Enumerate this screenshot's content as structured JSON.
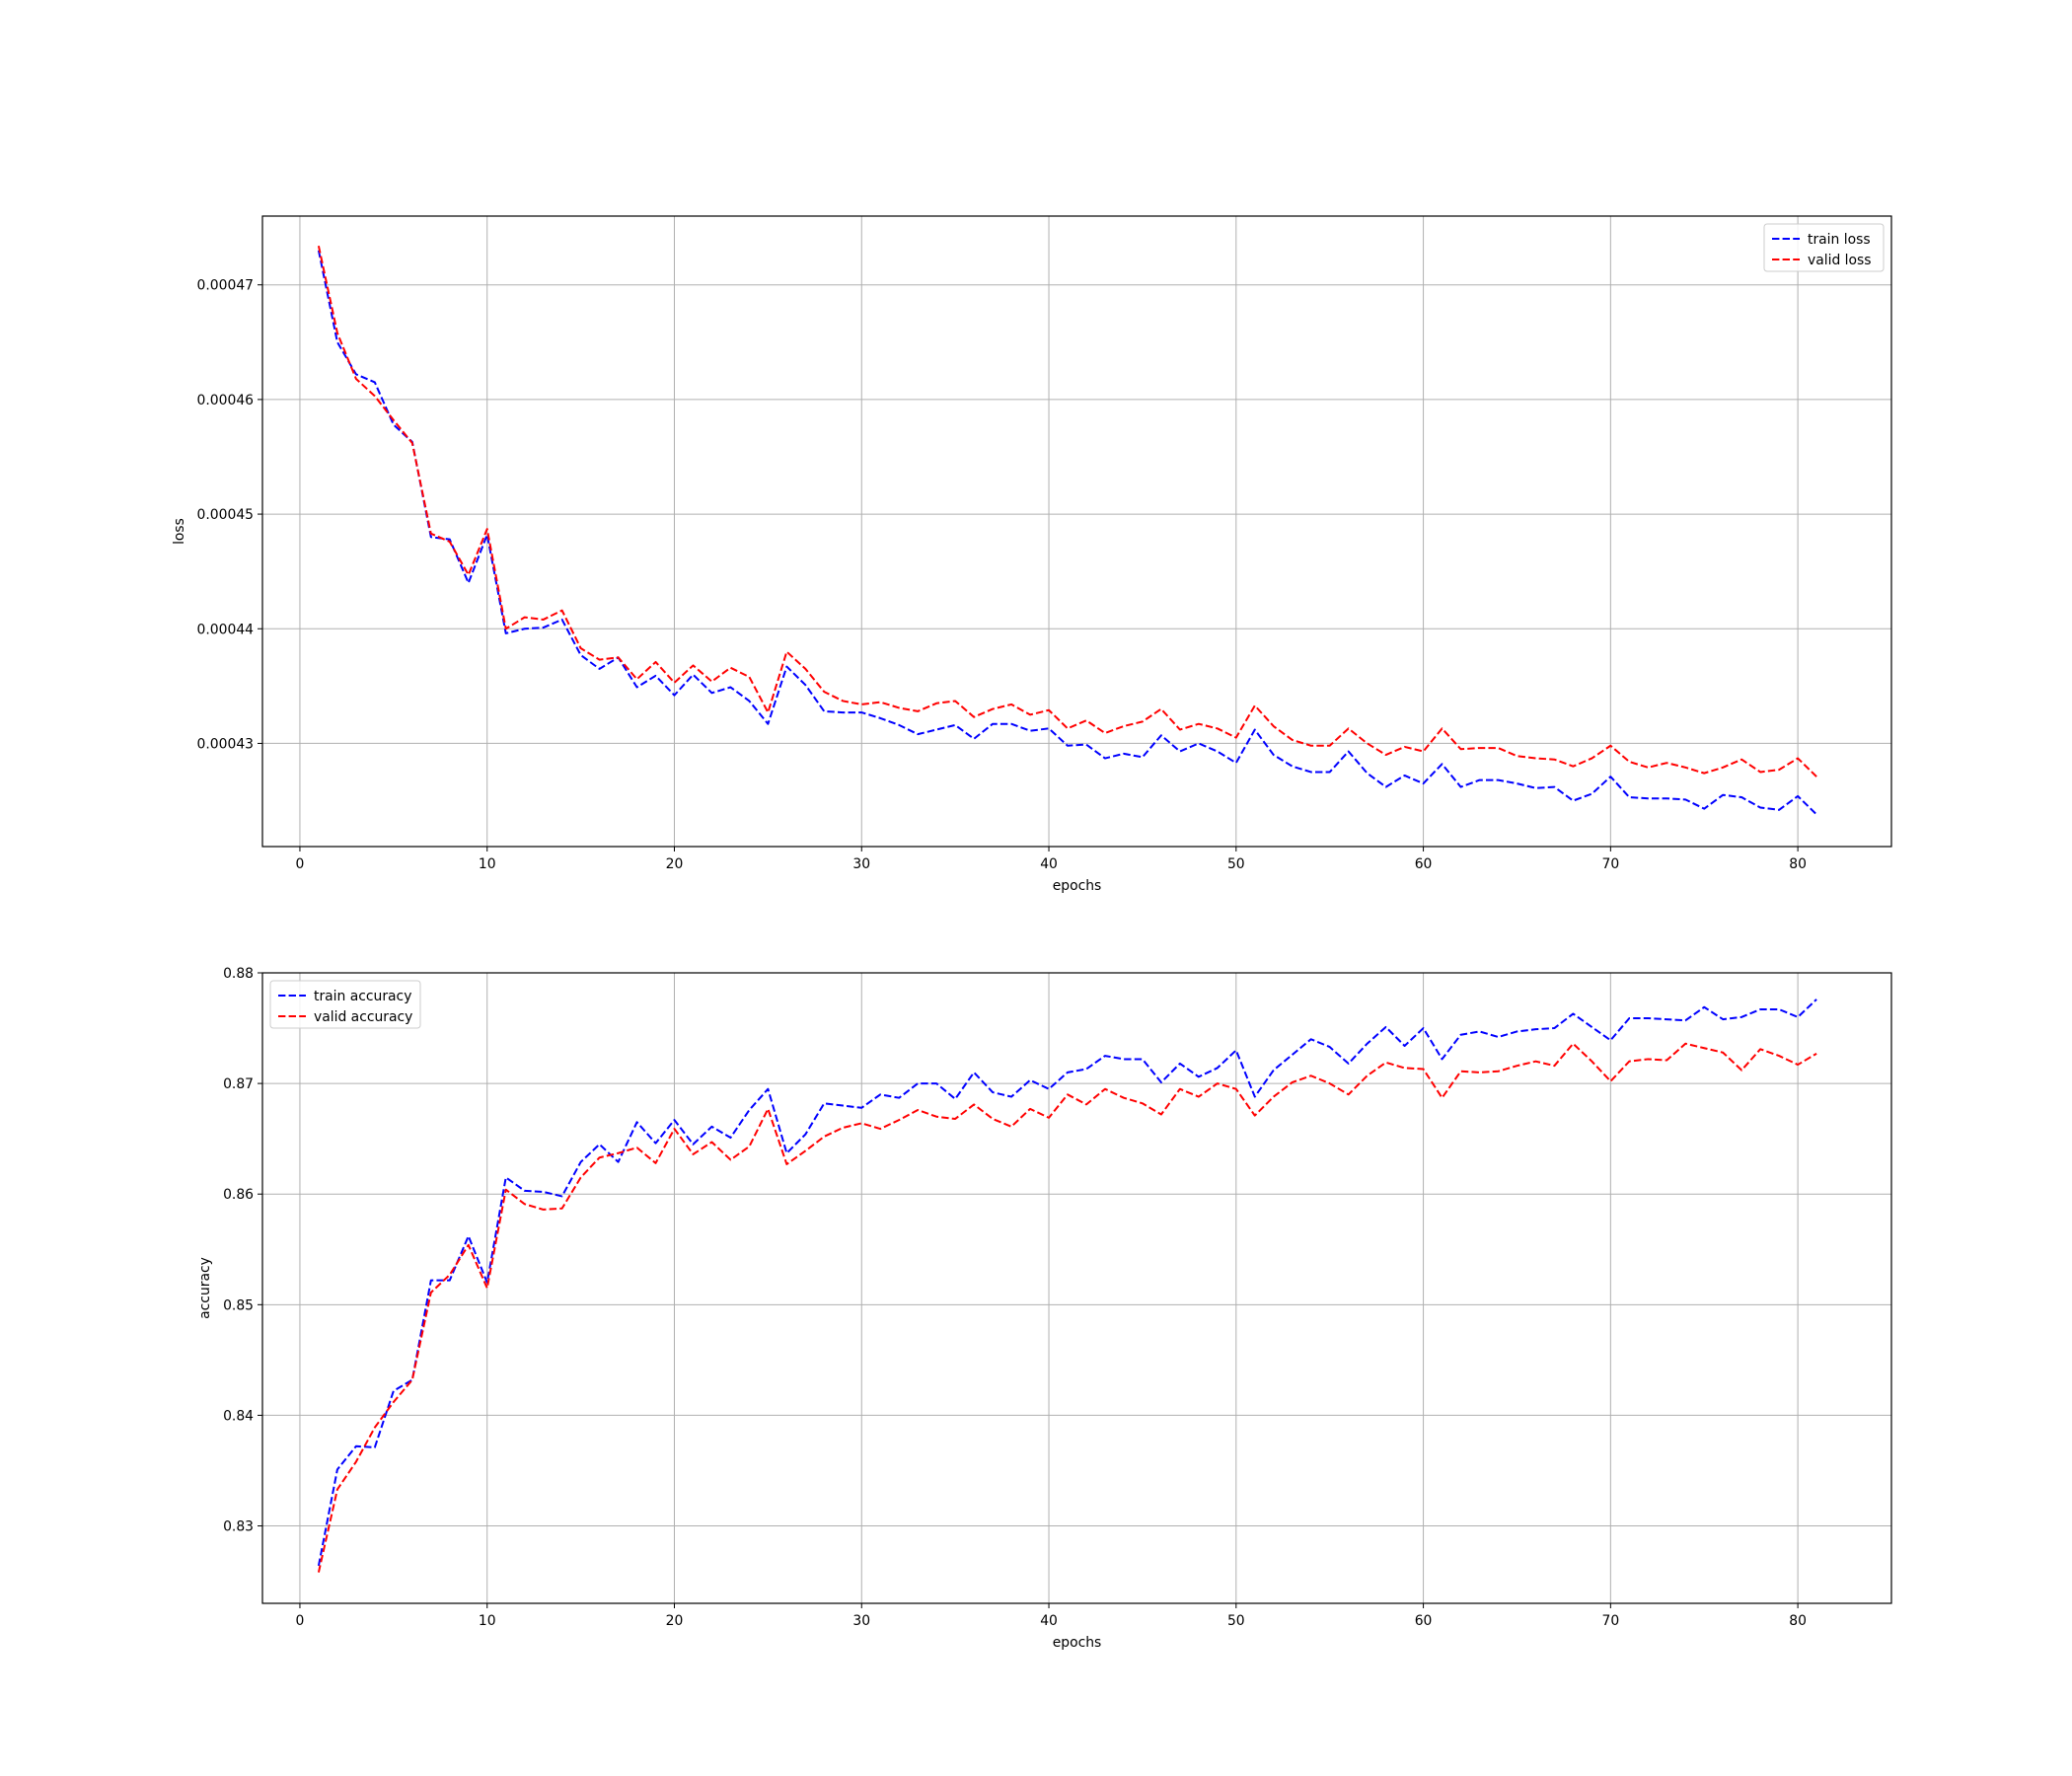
{
  "chart_data": [
    {
      "type": "line",
      "xlabel": "epochs",
      "ylabel": "loss",
      "xlim": [
        -2.0,
        85.0
      ],
      "ylim": [
        0.000421,
        0.000476
      ],
      "xticks": [
        0,
        10,
        20,
        30,
        40,
        50,
        60,
        70,
        80
      ],
      "yticks": [
        0.00043,
        0.00044,
        0.00045,
        0.00046,
        0.00047
      ],
      "ytick_labels": [
        "0.00043",
        "0.00044",
        "0.00045",
        "0.00046",
        "0.00047"
      ],
      "grid": true,
      "legend_position": "top-right",
      "x": [
        1,
        2,
        3,
        4,
        5,
        6,
        7,
        8,
        9,
        10,
        11,
        12,
        13,
        14,
        15,
        16,
        17,
        18,
        19,
        20,
        21,
        22,
        23,
        24,
        25,
        26,
        27,
        28,
        29,
        30,
        31,
        32,
        33,
        34,
        35,
        36,
        37,
        38,
        39,
        40,
        41,
        42,
        43,
        44,
        45,
        46,
        47,
        48,
        49,
        50,
        51,
        52,
        53,
        54,
        55,
        56,
        57,
        58,
        59,
        60,
        61,
        62,
        63,
        64,
        65,
        66,
        67,
        68,
        69,
        70,
        71,
        72,
        73,
        74,
        75,
        76,
        77,
        78,
        79,
        80,
        81
      ],
      "series": [
        {
          "name": "train loss",
          "color": "#0000ff",
          "values": [
            0.000473,
            0.000465,
            0.0004622,
            0.0004615,
            0.0004578,
            0.0004563,
            0.000448,
            0.0004478,
            0.000444,
            0.0004482,
            0.0004396,
            0.00044,
            0.0004401,
            0.0004408,
            0.0004377,
            0.0004365,
            0.0004375,
            0.0004349,
            0.0004359,
            0.0004342,
            0.000436,
            0.0004344,
            0.0004349,
            0.0004337,
            0.0004317,
            0.0004367,
            0.0004351,
            0.0004328,
            0.0004327,
            0.0004327,
            0.0004322,
            0.0004316,
            0.0004308,
            0.0004312,
            0.0004316,
            0.0004304,
            0.0004317,
            0.0004317,
            0.0004311,
            0.0004313,
            0.0004298,
            0.0004299,
            0.0004287,
            0.0004291,
            0.0004288,
            0.0004307,
            0.0004293,
            0.00043,
            0.0004293,
            0.0004283,
            0.0004312,
            0.000429,
            0.000428,
            0.0004275,
            0.0004275,
            0.0004293,
            0.0004274,
            0.0004262,
            0.0004272,
            0.0004265,
            0.0004282,
            0.0004262,
            0.0004268,
            0.0004268,
            0.0004265,
            0.0004261,
            0.0004262,
            0.000425,
            0.0004256,
            0.0004271,
            0.0004253,
            0.0004252,
            0.0004252,
            0.0004251,
            0.0004243,
            0.0004255,
            0.0004253,
            0.0004244,
            0.0004242,
            0.0004254,
            0.0004238
          ]
        },
        {
          "name": "valid loss",
          "color": "#ff0000",
          "values": [
            0.0004734,
            0.0004658,
            0.0004618,
            0.0004603,
            0.0004582,
            0.0004562,
            0.0004483,
            0.0004476,
            0.0004447,
            0.0004487,
            0.00044,
            0.000441,
            0.0004408,
            0.0004416,
            0.0004383,
            0.0004373,
            0.0004375,
            0.0004356,
            0.0004371,
            0.0004353,
            0.0004368,
            0.0004354,
            0.0004366,
            0.0004358,
            0.0004327,
            0.000438,
            0.0004365,
            0.0004345,
            0.0004337,
            0.0004334,
            0.0004336,
            0.0004331,
            0.0004328,
            0.0004335,
            0.0004337,
            0.0004323,
            0.000433,
            0.0004334,
            0.0004325,
            0.0004329,
            0.0004313,
            0.000432,
            0.0004309,
            0.0004315,
            0.0004319,
            0.000433,
            0.0004312,
            0.0004317,
            0.0004313,
            0.0004305,
            0.0004333,
            0.0004315,
            0.0004303,
            0.0004298,
            0.0004298,
            0.0004313,
            0.00043,
            0.000429,
            0.0004297,
            0.0004293,
            0.0004313,
            0.0004295,
            0.0004296,
            0.0004296,
            0.0004289,
            0.0004287,
            0.0004286,
            0.000428,
            0.0004287,
            0.0004298,
            0.0004284,
            0.0004279,
            0.0004283,
            0.0004279,
            0.0004274,
            0.0004279,
            0.0004286,
            0.0004275,
            0.0004277,
            0.0004287,
            0.0004271
          ]
        }
      ]
    },
    {
      "type": "line",
      "xlabel": "epochs",
      "ylabel": "accuracy",
      "xlim": [
        -2.0,
        85.0
      ],
      "ylim": [
        0.823,
        0.88
      ],
      "xticks": [
        0,
        10,
        20,
        30,
        40,
        50,
        60,
        70,
        80
      ],
      "yticks": [
        0.83,
        0.84,
        0.85,
        0.86,
        0.87,
        0.88
      ],
      "ytick_labels": [
        "0.83",
        "0.84",
        "0.85",
        "0.86",
        "0.87",
        "0.88"
      ],
      "grid": true,
      "legend_position": "top-left",
      "x": [
        1,
        2,
        3,
        4,
        5,
        6,
        7,
        8,
        9,
        10,
        11,
        12,
        13,
        14,
        15,
        16,
        17,
        18,
        19,
        20,
        21,
        22,
        23,
        24,
        25,
        26,
        27,
        28,
        29,
        30,
        31,
        32,
        33,
        34,
        35,
        36,
        37,
        38,
        39,
        40,
        41,
        42,
        43,
        44,
        45,
        46,
        47,
        48,
        49,
        50,
        51,
        52,
        53,
        54,
        55,
        56,
        57,
        58,
        59,
        60,
        61,
        62,
        63,
        64,
        65,
        66,
        67,
        68,
        69,
        70,
        71,
        72,
        73,
        74,
        75,
        76,
        77,
        78,
        79,
        80,
        81
      ],
      "series": [
        {
          "name": "train accuracy",
          "color": "#0000ff",
          "values": [
            0.8264,
            0.8351,
            0.8372,
            0.8371,
            0.8422,
            0.8432,
            0.8522,
            0.8522,
            0.8562,
            0.852,
            0.8615,
            0.8603,
            0.8602,
            0.8598,
            0.8629,
            0.8645,
            0.8629,
            0.8665,
            0.8646,
            0.8667,
            0.8645,
            0.8661,
            0.8651,
            0.8676,
            0.8695,
            0.8637,
            0.8654,
            0.8682,
            0.868,
            0.8678,
            0.869,
            0.8687,
            0.87,
            0.87,
            0.8686,
            0.871,
            0.8692,
            0.8688,
            0.8703,
            0.8695,
            0.871,
            0.8713,
            0.8725,
            0.8722,
            0.8722,
            0.8701,
            0.8718,
            0.8706,
            0.8714,
            0.873,
            0.8688,
            0.8712,
            0.8726,
            0.874,
            0.8733,
            0.8718,
            0.8736,
            0.8751,
            0.8734,
            0.875,
            0.8722,
            0.8744,
            0.8747,
            0.8742,
            0.8747,
            0.8749,
            0.875,
            0.8763,
            0.8751,
            0.8739,
            0.8759,
            0.8759,
            0.8758,
            0.8757,
            0.8769,
            0.8758,
            0.876,
            0.8767,
            0.8767,
            0.876,
            0.8776
          ]
        },
        {
          "name": "valid accuracy",
          "color": "#ff0000",
          "values": [
            0.8258,
            0.8333,
            0.8358,
            0.8389,
            0.8412,
            0.8432,
            0.8511,
            0.8527,
            0.8554,
            0.8515,
            0.8604,
            0.8591,
            0.8586,
            0.8587,
            0.8615,
            0.8633,
            0.8637,
            0.8642,
            0.8628,
            0.8659,
            0.8636,
            0.8647,
            0.8631,
            0.8643,
            0.8677,
            0.8627,
            0.8639,
            0.8652,
            0.866,
            0.8664,
            0.8659,
            0.8667,
            0.8676,
            0.867,
            0.8668,
            0.8681,
            0.8668,
            0.8661,
            0.8677,
            0.8669,
            0.869,
            0.8681,
            0.8695,
            0.8687,
            0.8682,
            0.8672,
            0.8695,
            0.8688,
            0.87,
            0.8695,
            0.8671,
            0.8688,
            0.8701,
            0.8707,
            0.87,
            0.869,
            0.8707,
            0.8719,
            0.8714,
            0.8713,
            0.8687,
            0.8711,
            0.871,
            0.8711,
            0.8716,
            0.872,
            0.8716,
            0.8736,
            0.872,
            0.8702,
            0.872,
            0.8722,
            0.8721,
            0.8736,
            0.8732,
            0.8728,
            0.8712,
            0.8731,
            0.8725,
            0.8717,
            0.8727
          ]
        }
      ]
    }
  ]
}
